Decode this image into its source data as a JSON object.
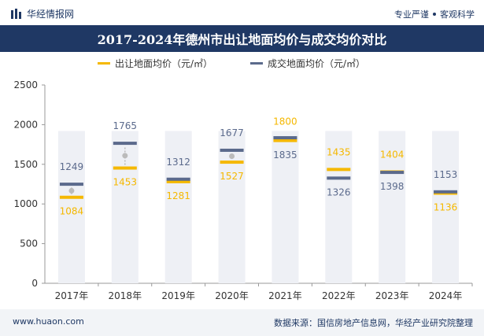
{
  "header": {
    "brand": "华经情报网",
    "tagline_left": "专业严谨",
    "tagline_right": "客观科学"
  },
  "legend": {
    "series1": "出让地面均价（元/㎡）",
    "series2": "成交地面均价（元/㎡）"
  },
  "footer": {
    "url": "www.huaon.com",
    "source": "数据来源：国信房地产信息网，华经产业研究院整理"
  },
  "colors": {
    "title_bg": "#1f3864",
    "series1": "#f5b800",
    "series2": "#5b6a8c",
    "bar_bg": "#eef0f5"
  },
  "chart_data": {
    "type": "line",
    "title": "2017-2024年德州市出让地面均价与成交均价对比",
    "categories": [
      "2017年",
      "2018年",
      "2019年",
      "2020年",
      "2021年",
      "2022年",
      "2023年",
      "2024年"
    ],
    "series": [
      {
        "name": "出让地面均价（元/㎡）",
        "values": [
          1084,
          1453,
          1281,
          1527,
          1800,
          1435,
          1404,
          1136
        ]
      },
      {
        "name": "成交地面均价（元/㎡）",
        "values": [
          1249,
          1765,
          1312,
          1677,
          1835,
          1326,
          1398,
          1153
        ]
      }
    ],
    "yticks": [
      0,
      500,
      1000,
      1500,
      2000,
      2500
    ],
    "ylim": [
      0,
      2500
    ],
    "xlabel": "",
    "ylabel": ""
  }
}
